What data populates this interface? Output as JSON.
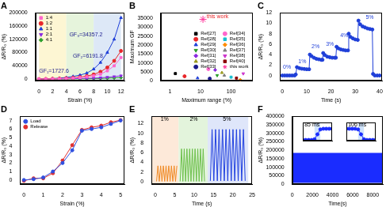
{
  "chart_data": [
    {
      "type": "line",
      "title": "A",
      "x_label": "Strain (%)",
      "y_label": "ΔR/R₀ (%)",
      "xlim": [
        -0.5,
        12.5
      ],
      "xticks": [
        0,
        2,
        4,
        6,
        8,
        10,
        12
      ],
      "ylim": [
        -5000,
        200000
      ],
      "yticks": [
        0,
        40000,
        80000,
        120000,
        160000,
        200000
      ],
      "grid": false,
      "legend": "upper left",
      "regions": [
        {
          "from": 0,
          "to": 4,
          "color": "#fdf6d3"
        },
        {
          "from": 4,
          "to": 8,
          "color": "#e6f4dc"
        },
        {
          "from": 8,
          "to": 12,
          "color": "#dde8f7"
        }
      ],
      "annotations": [
        {
          "text": "GF₁=1727.6",
          "color": "#1a1a8c"
        },
        {
          "text": "GF₂=6191.8",
          "color": "#1a1a8c"
        },
        {
          "text": "GF₃=34357.2",
          "color": "#1a1a8c"
        }
      ],
      "series": [
        {
          "name": "1:4",
          "color": "#ff66cc",
          "marker": "square",
          "line_style": "solid",
          "x": [
            0,
            1,
            2,
            3,
            4,
            5,
            6,
            7,
            8,
            9,
            10,
            11,
            12
          ],
          "values": [
            0,
            200,
            500,
            1000,
            1800,
            3000,
            4500,
            7000,
            10000,
            15000,
            25000,
            40000,
            65000
          ]
        },
        {
          "name": "1:2",
          "color": "#e8262a",
          "marker": "circle",
          "line_style": "solid",
          "x": [
            0,
            1,
            2,
            3,
            4,
            5,
            6,
            7,
            8,
            9,
            10,
            11,
            12
          ],
          "values": [
            0,
            300,
            800,
            1500,
            2500,
            4000,
            6000,
            9000,
            14000,
            22000,
            35000,
            55000,
            85000
          ]
        },
        {
          "name": "1:1",
          "color": "#1f3fd8",
          "marker": "triangle",
          "line_style": "solid",
          "x": [
            0,
            1,
            2,
            3,
            4,
            5,
            6,
            7,
            8,
            9,
            10,
            11,
            12
          ],
          "values": [
            0,
            500,
            1500,
            3000,
            5000,
            8000,
            12000,
            18000,
            30000,
            50000,
            80000,
            120000,
            185000
          ]
        },
        {
          "name": "2:1",
          "color": "#8b2be2",
          "marker": "triangle_down",
          "line_style": "solid",
          "x": [
            0,
            1,
            2,
            3,
            4,
            5,
            6,
            7,
            8,
            9,
            10,
            11,
            12
          ],
          "values": [
            0,
            100,
            250,
            500,
            800,
            1200,
            1700,
            2300,
            3000,
            4000,
            5500,
            7500,
            10000
          ]
        },
        {
          "name": "4:1",
          "color": "#2ca02c",
          "marker": "diamond",
          "line_style": "solid",
          "x": [
            0,
            1,
            2,
            3,
            4,
            5,
            6,
            7,
            8,
            9,
            10,
            11,
            12
          ],
          "values": [
            0,
            50,
            120,
            250,
            400,
            600,
            850,
            1100,
            1500,
            2000,
            2700,
            3500,
            4500
          ]
        }
      ]
    },
    {
      "type": "scatter",
      "title": "B",
      "x_label": "Maximum range (%)",
      "y_label": "Maximum GF",
      "log": "x",
      "xlim": [
        0.5,
        500
      ],
      "xticks": [
        1,
        10,
        100
      ],
      "ylim": [
        0,
        38000
      ],
      "yticks": [
        0,
        5000,
        10000,
        15000,
        20000,
        25000,
        30000,
        35000
      ],
      "grid": false,
      "legend": "upper right",
      "annotations": [
        {
          "text": "this work",
          "color": "#e8262a"
        }
      ],
      "series": [
        {
          "name": "Ref[27]",
          "color": "#000000",
          "marker": "square",
          "x": [
            1.5
          ],
          "values": [
            4000
          ]
        },
        {
          "name": "Ref[28]",
          "color": "#e8262a",
          "marker": "circle",
          "x": [
            3
          ],
          "values": [
            2500
          ]
        },
        {
          "name": "Ref[29]",
          "color": "#1f3fd8",
          "marker": "triangle",
          "x": [
            8
          ],
          "values": [
            1500
          ]
        },
        {
          "name": "Ref[30]",
          "color": "#2ca02c",
          "marker": "triangle_down",
          "x": [
            35
          ],
          "values": [
            3000
          ]
        },
        {
          "name": "Ref[31]",
          "color": "#8b2be2",
          "marker": "diamond",
          "x": [
            30
          ],
          "values": [
            6000
          ]
        },
        {
          "name": "Ref[32]",
          "color": "#9a9a1e",
          "marker": "triangle",
          "x": [
            50
          ],
          "values": [
            4500
          ]
        },
        {
          "name": "Ref[33]",
          "color": "#1a1a8c",
          "marker": "circle",
          "x": [
            20
          ],
          "values": [
            1200
          ]
        },
        {
          "name": "Ref[34]",
          "color": "#ff66cc",
          "marker": "circle",
          "x": [
            18
          ],
          "values": [
            6500
          ]
        },
        {
          "name": "Ref[35]",
          "color": "#17becf",
          "marker": "square",
          "x": [
            100
          ],
          "values": [
            2000
          ]
        },
        {
          "name": "Ref[36]",
          "color": "#ff8c00",
          "marker": "diamond",
          "x": [
            200
          ],
          "values": [
            500
          ]
        },
        {
          "name": "Ref[37]",
          "color": "#7f7f7f",
          "marker": "triangle",
          "x": [
            60
          ],
          "values": [
            3000
          ]
        },
        {
          "name": "Ref[38]",
          "color": "#cc33cc",
          "marker": "triangle_down",
          "x": [
            250
          ],
          "values": [
            4000
          ]
        },
        {
          "name": "Ref[40]",
          "color": "#8b0000",
          "marker": "square",
          "x": [
            150
          ],
          "values": [
            1500
          ]
        },
        {
          "name": "this work",
          "color": "#ff3399",
          "marker": "star",
          "x": [
            12
          ],
          "values": [
            34357.2
          ]
        }
      ]
    },
    {
      "type": "line",
      "title": "C",
      "x_label": "Time (s)",
      "y_label": "ΔR/R₀ (%)",
      "xlim": [
        -1,
        41
      ],
      "xticks": [
        0,
        10,
        20,
        30,
        40
      ],
      "ylim": [
        -1,
        12
      ],
      "yticks": [
        0,
        2,
        4,
        6,
        8,
        10,
        12
      ],
      "grid": false,
      "annotations": [
        {
          "text": "0%",
          "color": "#1f3fd8"
        },
        {
          "text": "1%",
          "color": "#1f3fd8"
        },
        {
          "text": "2%",
          "color": "#1f3fd8"
        },
        {
          "text": "3%",
          "color": "#1f3fd8"
        },
        {
          "text": "4%",
          "color": "#1f3fd8"
        },
        {
          "text": "5%",
          "color": "#1f3fd8"
        }
      ],
      "series": [
        {
          "color": "#1f3fd8",
          "marker": "circle",
          "line_style": "solid",
          "x": [
            0,
            1,
            2,
            3,
            4,
            5,
            5.5,
            6,
            7,
            8,
            9,
            10,
            11,
            11.3,
            12,
            13,
            14,
            15,
            16,
            16.5,
            16.8,
            17.5,
            18.5,
            19.5,
            20.5,
            21.5,
            22,
            22.3,
            23,
            24,
            25,
            26,
            27,
            27.3,
            28,
            29,
            30,
            31,
            31.3,
            32,
            33,
            34,
            35,
            36,
            37,
            37.3,
            38,
            39,
            40
          ],
          "values": [
            0,
            0,
            0,
            0,
            0,
            0,
            0.2,
            1.6,
            1.4,
            1.3,
            1.25,
            1.2,
            1.2,
            4.0,
            3.7,
            3.4,
            3.2,
            3.1,
            3.0,
            3.0,
            4.3,
            3.9,
            3.6,
            3.5,
            3.4,
            3.4,
            3.4,
            5.5,
            5.2,
            5.0,
            4.9,
            4.8,
            4.8,
            8.0,
            7.4,
            7.1,
            6.9,
            6.8,
            10.5,
            9.8,
            9.4,
            9.2,
            9.0,
            8.9,
            8.8,
            0.3,
            0,
            0,
            0
          ]
        }
      ]
    },
    {
      "type": "line",
      "title": "D",
      "x_label": "Strain (%)",
      "y_label": "ΔR/R₀ (%)",
      "xlim": [
        -0.2,
        5.2
      ],
      "xticks": [
        0,
        1,
        2,
        3,
        4,
        5
      ],
      "ylim": [
        -0.5,
        7.5
      ],
      "yticks": [
        0,
        1,
        2,
        3,
        4,
        5,
        6,
        7
      ],
      "grid": false,
      "legend": "upper left",
      "series": [
        {
          "name": "Load",
          "color": "#3050e0",
          "marker": "circle",
          "line_style": "solid",
          "x": [
            0,
            0.5,
            1,
            1.5,
            2,
            2.5,
            3,
            3.5,
            4,
            4.5,
            5
          ],
          "values": [
            0,
            0.1,
            0.3,
            1,
            2,
            3.5,
            5.8,
            6,
            6.2,
            6.6,
            7
          ]
        },
        {
          "name": "Release",
          "color": "#e03030",
          "marker": "circle",
          "line_style": "solid",
          "x": [
            0,
            0.5,
            1,
            1.5,
            2,
            2.5,
            3,
            3.5,
            4,
            4.5,
            5
          ],
          "values": [
            -0.1,
            0.2,
            0.2,
            0.8,
            2.3,
            4.1,
            5.9,
            6.2,
            6.4,
            6.8,
            7.05
          ]
        }
      ]
    },
    {
      "type": "line",
      "title": "E",
      "x_label": "Time (s)",
      "y_label": "ΔR/R₀ (%)",
      "xlim": [
        -1,
        25
      ],
      "xticks": [
        0,
        5,
        10,
        15,
        20,
        25
      ],
      "ylim": [
        -0.5,
        13.5
      ],
      "yticks": [
        0,
        2,
        4,
        6,
        8,
        10,
        12
      ],
      "grid": false,
      "regions": [
        {
          "from": -1,
          "to": 6,
          "color": "#fde9d9"
        },
        {
          "from": 6,
          "to": 13.5,
          "color": "#e3f4dc"
        },
        {
          "from": 13.5,
          "to": 24,
          "color": "#dfe6fa"
        }
      ],
      "annotations": [
        {
          "text": "1%",
          "color": "#000000"
        },
        {
          "text": "2%",
          "color": "#000000"
        },
        {
          "text": "5%",
          "color": "#000000"
        }
      ],
      "series": [
        {
          "color": "#f08a24",
          "marker": "none",
          "line_style": "solid",
          "x": [
            0.3,
            0.65,
            1.0,
            1.35,
            1.7,
            2.05,
            2.4,
            2.75,
            3.1,
            3.45,
            3.8,
            4.15,
            4.5,
            4.85,
            5.2,
            5.55
          ],
          "values": [
            0.1,
            3.3,
            0.1,
            3.3,
            0.1,
            3.3,
            0.1,
            3.3,
            0.1,
            3.3,
            0.1,
            3.3,
            0.1,
            3.3,
            0.1,
            3.3
          ]
        },
        {
          "color": "#6cc04a",
          "marker": "none",
          "line_style": "solid",
          "x": [
            6.4,
            6.75,
            7.1,
            7.45,
            7.8,
            8.15,
            8.5,
            8.85,
            9.2,
            9.55,
            9.9,
            10.25,
            10.6,
            10.95,
            11.3,
            11.65,
            12.0,
            12.35,
            12.7
          ],
          "values": [
            0.1,
            6.8,
            0.1,
            6.8,
            0.1,
            6.8,
            0.1,
            6.8,
            0.1,
            6.8,
            0.1,
            6.8,
            0.1,
            6.8,
            0.1,
            6.8,
            0.1,
            6.8,
            0.1
          ]
        },
        {
          "color": "#2040e0",
          "marker": "none",
          "line_style": "solid",
          "x": [
            14.2,
            14.65,
            15.1,
            15.55,
            16.0,
            16.45,
            16.9,
            17.35,
            17.8,
            18.25,
            18.7,
            19.15,
            19.6,
            20.05,
            20.5,
            20.95,
            21.4,
            21.85,
            22.3,
            22.75,
            23.2
          ],
          "values": [
            0.2,
            10.8,
            0.2,
            10.8,
            0.2,
            10.8,
            0.2,
            10.8,
            0.2,
            10.8,
            0.2,
            10.8,
            0.2,
            10.8,
            0.2,
            10.8,
            0.2,
            10.8,
            0.2,
            10.8,
            0.2
          ]
        }
      ]
    },
    {
      "type": "line",
      "title": "F",
      "x_label": "Time(s)",
      "y_label": "ΔR/R₀ (%)",
      "xlim": [
        0,
        9000
      ],
      "xticks": [
        0,
        2000,
        4000,
        6000,
        8000
      ],
      "ylim": [
        0,
        400000
      ],
      "yticks": [
        0,
        50000,
        100000,
        150000,
        200000,
        250000,
        300000,
        350000,
        400000
      ],
      "grid": false,
      "series": [
        {
          "type": "band",
          "color": "#1a2cff",
          "x": [
            0,
            9000
          ],
          "low": [
            8000,
            8000
          ],
          "high": [
            185000,
            185000
          ]
        }
      ],
      "insets": [
        {
          "type": "line",
          "xlim": [
            0,
            10
          ],
          "ylim": [
            0,
            260000
          ],
          "tick_labels": false,
          "grid": false,
          "regions": [
            {
              "from": 4,
              "to": 6,
              "color": "#cfe3fb"
            }
          ],
          "annotations": [
            {
              "text": "85 ms",
              "color": "#000000"
            }
          ],
          "series": [
            {
              "color": "#1a2cff",
              "marker": "circle",
              "line_style": "solid",
              "x": [
                0,
                1,
                2,
                3,
                4,
                5,
                6,
                7,
                8,
                9,
                10
              ],
              "values": [
                10000,
                10000,
                10000,
                10000,
                20000,
                90000,
                160000,
                170000,
                170000,
                170000,
                170000
              ]
            }
          ]
        },
        {
          "type": "line",
          "xlim": [
            0,
            10
          ],
          "ylim": [
            0,
            260000
          ],
          "tick_labels": false,
          "grid": false,
          "regions": [
            {
              "from": 4,
              "to": 6,
              "color": "#cfe3fb"
            }
          ],
          "annotations": [
            {
              "text": "106 ms",
              "color": "#000000"
            }
          ],
          "series": [
            {
              "color": "#1a2cff",
              "marker": "circle",
              "line_style": "solid",
              "x": [
                0,
                1,
                2,
                3,
                4,
                5,
                6,
                7,
                8,
                9,
                10
              ],
              "values": [
                170000,
                170000,
                170000,
                170000,
                160000,
                90000,
                20000,
                10000,
                10000,
                10000,
                10000
              ]
            }
          ]
        }
      ]
    }
  ]
}
